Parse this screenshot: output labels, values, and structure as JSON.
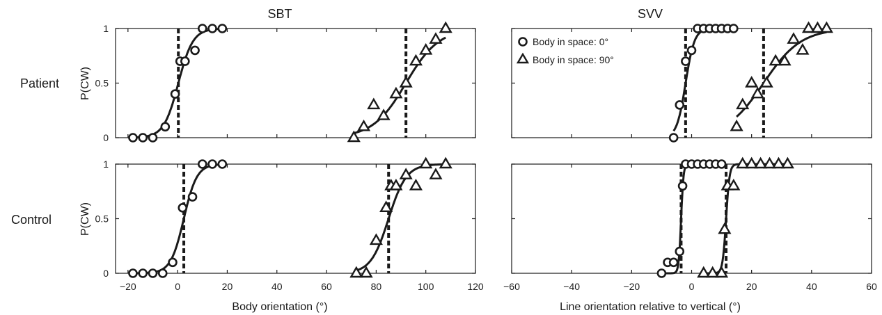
{
  "column_titles": {
    "left": "SBT",
    "right": "SVV"
  },
  "row_labels": {
    "top": "Patient",
    "bottom": "Control"
  },
  "ylabel": "P(CW)",
  "legend": [
    {
      "marker": "circle",
      "label": "Body in space: 0°"
    },
    {
      "marker": "triangle",
      "label": "Body in space: 90°"
    }
  ],
  "chart_data": [
    {
      "type": "scatter",
      "panel": "Patient-SBT",
      "title": "SBT",
      "ylabel": "P(CW)",
      "xlim": [
        -25,
        120
      ],
      "ylim": [
        0,
        1
      ],
      "xticks": [],
      "yticks": [
        "0",
        "0.5",
        "1"
      ],
      "series": [
        {
          "name": "Body in space: 0°",
          "marker": "circle",
          "x": [
            -18,
            -14,
            -10,
            -5,
            -1,
            1,
            3,
            7,
            10,
            14,
            18
          ],
          "y": [
            0,
            0,
            0,
            0.1,
            0.4,
            0.7,
            0.7,
            0.8,
            1,
            1,
            1
          ],
          "threshold": 0.5
        },
        {
          "name": "Body in space: 90°",
          "marker": "triangle",
          "x": [
            71,
            75,
            79,
            83,
            88,
            92,
            96,
            100,
            104,
            108
          ],
          "y": [
            0,
            0.1,
            0.3,
            0.2,
            0.4,
            0.5,
            0.7,
            0.8,
            0.9,
            1
          ],
          "threshold": 92
        }
      ]
    },
    {
      "type": "scatter",
      "panel": "Patient-SVV",
      "title": "SVV",
      "xlim": [
        -60,
        60
      ],
      "ylim": [
        0,
        1
      ],
      "xticks": [],
      "yticks": [],
      "series": [
        {
          "name": "Body in space: 0°",
          "marker": "circle",
          "x": [
            -6,
            -4,
            -2,
            0,
            2,
            4,
            6,
            8,
            10,
            12,
            14
          ],
          "y": [
            0,
            0.3,
            0.7,
            0.8,
            1,
            1,
            1,
            1,
            1,
            1,
            1
          ],
          "threshold": -2
        },
        {
          "name": "Body in space: 90°",
          "marker": "triangle",
          "x": [
            15,
            17,
            20,
            22,
            25,
            28,
            31,
            34,
            37,
            39,
            42,
            45
          ],
          "y": [
            0.1,
            0.3,
            0.5,
            0.4,
            0.5,
            0.7,
            0.7,
            0.9,
            0.8,
            1,
            1,
            1
          ],
          "threshold": 24
        }
      ]
    },
    {
      "type": "scatter",
      "panel": "Control-SBT",
      "xlabel": "Body orientation (°)",
      "ylabel": "P(CW)",
      "xlim": [
        -25,
        120
      ],
      "ylim": [
        0,
        1
      ],
      "xticks": [
        "−20",
        "0",
        "20",
        "40",
        "60",
        "80",
        "100",
        "120"
      ],
      "yticks": [
        "0",
        "0.5",
        "1"
      ],
      "series": [
        {
          "name": "Body in space: 0°",
          "marker": "circle",
          "x": [
            -18,
            -14,
            -10,
            -6,
            -2,
            2,
            6,
            10,
            14,
            18
          ],
          "y": [
            0,
            0,
            0,
            0,
            0.1,
            0.6,
            0.7,
            1,
            1,
            1
          ],
          "threshold": 2.5
        },
        {
          "name": "Body in space: 90°",
          "marker": "triangle",
          "x": [
            72,
            76,
            80,
            84,
            86,
            88,
            92,
            96,
            100,
            104,
            108
          ],
          "y": [
            0,
            0,
            0.3,
            0.6,
            0.8,
            0.8,
            0.9,
            0.8,
            1,
            0.9,
            1
          ],
          "threshold": 85
        }
      ]
    },
    {
      "type": "scatter",
      "panel": "Control-SVV",
      "xlabel": "Line orientation relative to vertical (°)",
      "xlim": [
        -60,
        60
      ],
      "ylim": [
        0,
        1
      ],
      "xticks": [
        "−60",
        "−40",
        "−20",
        "0",
        "20",
        "40",
        "60"
      ],
      "yticks": [],
      "series": [
        {
          "name": "Body in space: 0°",
          "marker": "circle",
          "x": [
            -10,
            -8,
            -6,
            -4,
            -3,
            -2,
            0,
            2,
            4,
            6,
            8,
            10
          ],
          "y": [
            0,
            0.1,
            0.1,
            0.2,
            0.8,
            1,
            1,
            1,
            1,
            1,
            1,
            1
          ],
          "threshold": -3.5
        },
        {
          "name": "Body in space: 90°",
          "marker": "triangle",
          "x": [
            4,
            7,
            10,
            11,
            12,
            14,
            17,
            20,
            23,
            26,
            29,
            32
          ],
          "y": [
            0,
            0,
            0,
            0.4,
            0.8,
            0.8,
            1,
            1,
            1,
            1,
            1,
            1
          ],
          "threshold": 11.5
        }
      ]
    }
  ]
}
